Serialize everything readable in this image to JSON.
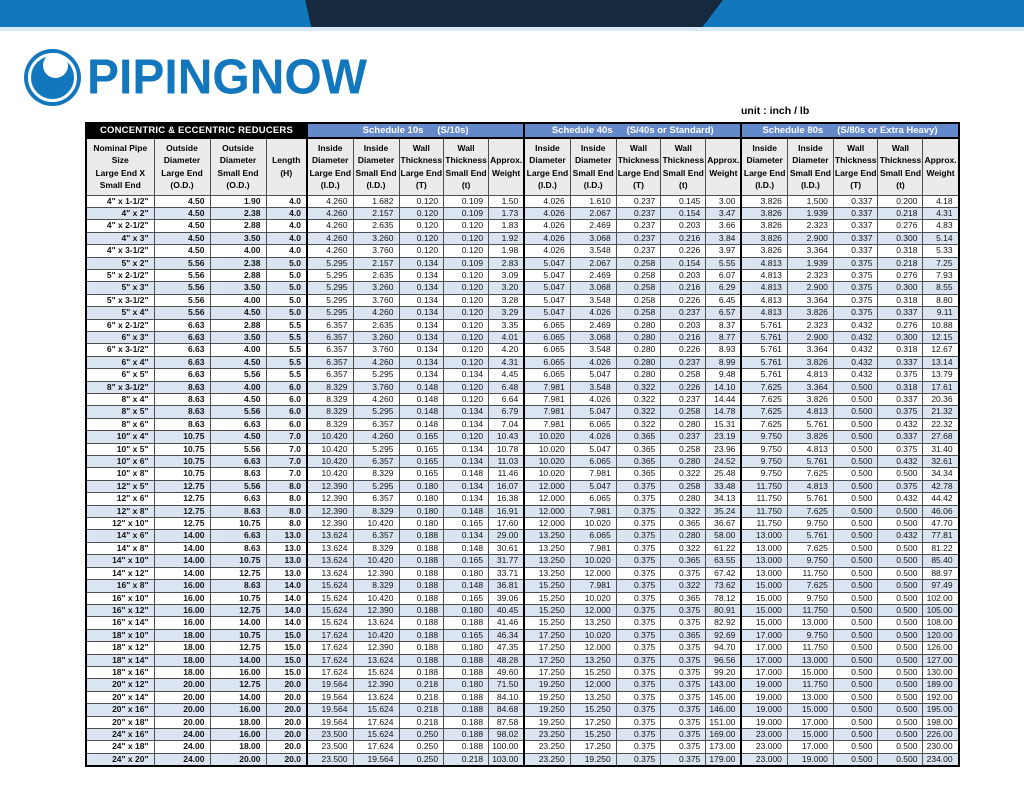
{
  "brand": {
    "name": "PIPINGNOW",
    "blue": "#1377be",
    "navy": "#16293e"
  },
  "unit_label": "unit : inch / lb",
  "table": {
    "title": "CONCENTRIC & ECCENTRIC REDUCERS",
    "schedules": [
      {
        "name": "Schedule 10s",
        "spec": "(S/10s)"
      },
      {
        "name": "Schedule 40s",
        "spec": "(S/40s or Standard)"
      },
      {
        "name": "Schedule 80s",
        "spec": "(S/80s or Extra Heavy)"
      }
    ],
    "base_columns": [
      "Nominal Pipe\nSize\nLarge End X\nSmall End",
      "Outside\nDiameter\nLarge End\n(O.D.)",
      "Outside\nDiameter\nSmall End\n(O.D.)",
      "Length\n(H)"
    ],
    "schedule_columns": [
      "Inside\nDiameter\nLarge End\n(I.D.)",
      "Inside\nDiameter\nSmall End\n(I.D.)",
      "Wall\nThickness\nLarge End\n(T)",
      "Wall\nThickness\nSmall End\n(t)",
      "Approx.\nWeight"
    ],
    "rows": [
      [
        "4\" x 1-1/2\"",
        "4.50",
        "1.90",
        "4.0",
        "4.260",
        "1.682",
        "0.120",
        "0.109",
        "1.50",
        "4.026",
        "1.610",
        "0.237",
        "0.145",
        "3.00",
        "3.826",
        "1.500",
        "0.337",
        "0.200",
        "4.18"
      ],
      [
        "4\" x 2\"",
        "4.50",
        "2.38",
        "4.0",
        "4.260",
        "2.157",
        "0.120",
        "0.109",
        "1.73",
        "4.026",
        "2.067",
        "0.237",
        "0.154",
        "3.47",
        "3.826",
        "1.939",
        "0.337",
        "0.218",
        "4.31"
      ],
      [
        "4\" x 2-1/2\"",
        "4.50",
        "2.88",
        "4.0",
        "4.260",
        "2.635",
        "0.120",
        "0.120",
        "1.83",
        "4.026",
        "2.469",
        "0.237",
        "0.203",
        "3.66",
        "3.826",
        "2.323",
        "0.337",
        "0.276",
        "4.83"
      ],
      [
        "4\" x 3\"",
        "4.50",
        "3.50",
        "4.0",
        "4.260",
        "3.260",
        "0.120",
        "0.120",
        "1.92",
        "4.026",
        "3.068",
        "0.237",
        "0.216",
        "3.84",
        "3.826",
        "2.900",
        "0.337",
        "0.300",
        "5.14"
      ],
      [
        "4\" x 3-1/2\"",
        "4.50",
        "4.00",
        "4.0",
        "4.260",
        "3.760",
        "0.120",
        "0.120",
        "1.98",
        "4.026",
        "3.548",
        "0.237",
        "0.226",
        "3.97",
        "3.826",
        "3.364",
        "0.337",
        "0.318",
        "5.33"
      ],
      [
        "5\" x 2\"",
        "5.56",
        "2.38",
        "5.0",
        "5.295",
        "2.157",
        "0.134",
        "0.109",
        "2.83",
        "5.047",
        "2.067",
        "0.258",
        "0.154",
        "5.55",
        "4.813",
        "1.939",
        "0.375",
        "0.218",
        "7.25"
      ],
      [
        "5\" x 2-1/2\"",
        "5.56",
        "2.88",
        "5.0",
        "5.295",
        "2.635",
        "0.134",
        "0.120",
        "3.09",
        "5.047",
        "2.469",
        "0.258",
        "0.203",
        "6.07",
        "4.813",
        "2.323",
        "0.375",
        "0.276",
        "7.93"
      ],
      [
        "5\" x 3\"",
        "5.56",
        "3.50",
        "5.0",
        "5.295",
        "3.260",
        "0.134",
        "0.120",
        "3.20",
        "5.047",
        "3.068",
        "0.258",
        "0.216",
        "6.29",
        "4.813",
        "2.900",
        "0.375",
        "0.300",
        "8.55"
      ],
      [
        "5\" x 3-1/2\"",
        "5.56",
        "4.00",
        "5.0",
        "5.295",
        "3.760",
        "0.134",
        "0.120",
        "3.28",
        "5.047",
        "3.548",
        "0.258",
        "0.226",
        "6.45",
        "4.813",
        "3.364",
        "0.375",
        "0.318",
        "8.80"
      ],
      [
        "5\" x 4\"",
        "5.56",
        "4.50",
        "5.0",
        "5.295",
        "4.260",
        "0.134",
        "0.120",
        "3.29",
        "5.047",
        "4.026",
        "0.258",
        "0.237",
        "6.57",
        "4.813",
        "3.826",
        "0.375",
        "0.337",
        "9.11"
      ],
      [
        "6\" x 2-1/2\"",
        "6.63",
        "2.88",
        "5.5",
        "6.357",
        "2.635",
        "0.134",
        "0.120",
        "3.35",
        "6.065",
        "2.469",
        "0.280",
        "0.203",
        "8.37",
        "5.761",
        "2.323",
        "0.432",
        "0.276",
        "10.88"
      ],
      [
        "6\" x 3\"",
        "6.63",
        "3.50",
        "5.5",
        "6.357",
        "3.260",
        "0.134",
        "0.120",
        "4.01",
        "6.065",
        "3.068",
        "0.280",
        "0.216",
        "8.77",
        "5.761",
        "2.900",
        "0.432",
        "0.300",
        "12.15"
      ],
      [
        "6\" x 3-1/2\"",
        "6.63",
        "4.00",
        "5.5",
        "6.357",
        "3.760",
        "0.134",
        "0.120",
        "4.20",
        "6.065",
        "3.548",
        "0.280",
        "0.226",
        "8.93",
        "5.761",
        "3.364",
        "0.432",
        "0.318",
        "12.67"
      ],
      [
        "6\" x 4\"",
        "6.63",
        "4.50",
        "5.5",
        "6.357",
        "4.260",
        "0.134",
        "0.120",
        "4.31",
        "6.065",
        "4.026",
        "0.280",
        "0.237",
        "8.99",
        "5.761",
        "3.826",
        "0.432",
        "0.337",
        "13.14"
      ],
      [
        "6\" x 5\"",
        "6.63",
        "5.56",
        "5.5",
        "6.357",
        "5.295",
        "0.134",
        "0.134",
        "4.45",
        "6.065",
        "5.047",
        "0.280",
        "0.258",
        "9.48",
        "5.761",
        "4.813",
        "0.432",
        "0.375",
        "13.79"
      ],
      [
        "8\" x 3-1/2\"",
        "8.63",
        "4.00",
        "6.0",
        "8.329",
        "3.760",
        "0.148",
        "0.120",
        "6.48",
        "7.981",
        "3.548",
        "0.322",
        "0.226",
        "14.10",
        "7.625",
        "3.364",
        "0.500",
        "0.318",
        "17.61"
      ],
      [
        "8\" x 4\"",
        "8.63",
        "4.50",
        "6.0",
        "8.329",
        "4.260",
        "0.148",
        "0.120",
        "6.64",
        "7.981",
        "4.026",
        "0.322",
        "0.237",
        "14.44",
        "7.625",
        "3.826",
        "0.500",
        "0.337",
        "20.36"
      ],
      [
        "8\" x 5\"",
        "8.63",
        "5.56",
        "6.0",
        "8.329",
        "5.295",
        "0.148",
        "0.134",
        "6.79",
        "7.981",
        "5.047",
        "0.322",
        "0.258",
        "14.78",
        "7.625",
        "4.813",
        "0.500",
        "0.375",
        "21.32"
      ],
      [
        "8\" x 6\"",
        "8.63",
        "6.63",
        "6.0",
        "8.329",
        "6.357",
        "0.148",
        "0.134",
        "7.04",
        "7.981",
        "6.065",
        "0.322",
        "0.280",
        "15.31",
        "7.625",
        "5.761",
        "0.500",
        "0.432",
        "22.32"
      ],
      [
        "10\" x 4\"",
        "10.75",
        "4.50",
        "7.0",
        "10.420",
        "4.260",
        "0.165",
        "0.120",
        "10.43",
        "10.020",
        "4.026",
        "0.365",
        "0.237",
        "23.19",
        "9.750",
        "3.826",
        "0.500",
        "0.337",
        "27.68"
      ],
      [
        "10\" x 5\"",
        "10.75",
        "5.56",
        "7.0",
        "10.420",
        "5.295",
        "0.165",
        "0.134",
        "10.78",
        "10.020",
        "5.047",
        "0.365",
        "0.258",
        "23.96",
        "9.750",
        "4.813",
        "0.500",
        "0.375",
        "31.40"
      ],
      [
        "10\" x 6\"",
        "10.75",
        "6.63",
        "7.0",
        "10.420",
        "6.357",
        "0.165",
        "0.134",
        "11.03",
        "10.020",
        "6.065",
        "0.365",
        "0.280",
        "24.52",
        "9.750",
        "5.761",
        "0.500",
        "0.432",
        "32.61"
      ],
      [
        "10\" x 8\"",
        "10.75",
        "8.63",
        "7.0",
        "10.420",
        "8.329",
        "0.165",
        "0.148",
        "11.46",
        "10.020",
        "7.981",
        "0.365",
        "0.322",
        "25.48",
        "9.750",
        "7.625",
        "0.500",
        "0.500",
        "34.34"
      ],
      [
        "12\" x 5\"",
        "12.75",
        "5.56",
        "8.0",
        "12.390",
        "5.295",
        "0.180",
        "0.134",
        "16.07",
        "12.000",
        "5.047",
        "0.375",
        "0.258",
        "33.48",
        "11.750",
        "4.813",
        "0.500",
        "0.375",
        "42.78"
      ],
      [
        "12\" x 6\"",
        "12.75",
        "6.63",
        "8.0",
        "12.390",
        "6.357",
        "0.180",
        "0.134",
        "16.38",
        "12.000",
        "6.065",
        "0.375",
        "0.280",
        "34.13",
        "11.750",
        "5.761",
        "0.500",
        "0.432",
        "44.42"
      ],
      [
        "12\" x 8\"",
        "12.75",
        "8.63",
        "8.0",
        "12.390",
        "8.329",
        "0.180",
        "0.148",
        "16.91",
        "12.000",
        "7.981",
        "0.375",
        "0.322",
        "35.24",
        "11.750",
        "7.625",
        "0.500",
        "0.500",
        "46.06"
      ],
      [
        "12\" x 10\"",
        "12.75",
        "10.75",
        "8.0",
        "12.390",
        "10.420",
        "0.180",
        "0.165",
        "17.60",
        "12.000",
        "10.020",
        "0.375",
        "0.365",
        "36.67",
        "11.750",
        "9.750",
        "0.500",
        "0.500",
        "47.70"
      ],
      [
        "14\" x 6\"",
        "14.00",
        "6.63",
        "13.0",
        "13.624",
        "6.357",
        "0.188",
        "0.134",
        "29.00",
        "13.250",
        "6.065",
        "0.375",
        "0.280",
        "58.00",
        "13.000",
        "5.761",
        "0.500",
        "0.432",
        "77.81"
      ],
      [
        "14\" x 8\"",
        "14.00",
        "8.63",
        "13.0",
        "13.624",
        "8.329",
        "0.188",
        "0.148",
        "30.61",
        "13.250",
        "7.981",
        "0.375",
        "0.322",
        "61.22",
        "13.000",
        "7.625",
        "0.500",
        "0.500",
        "81.22"
      ],
      [
        "14\" x 10\"",
        "14.00",
        "10.75",
        "13.0",
        "13.624",
        "10.420",
        "0.188",
        "0.165",
        "31.77",
        "13.250",
        "10.020",
        "0.375",
        "0.365",
        "63.55",
        "13.000",
        "9.750",
        "0.500",
        "0.500",
        "85.40"
      ],
      [
        "14\" x 12\"",
        "14.00",
        "12.75",
        "13.0",
        "13.624",
        "12.390",
        "0.188",
        "0.180",
        "33.71",
        "13.250",
        "12.000",
        "0.375",
        "0.375",
        "67.42",
        "13.000",
        "11.750",
        "0.500",
        "0.500",
        "88.97"
      ],
      [
        "16\" x 8\"",
        "16.00",
        "8.63",
        "14.0",
        "15.624",
        "8.329",
        "0.188",
        "0.148",
        "36.81",
        "15.250",
        "7.981",
        "0.375",
        "0.322",
        "73.62",
        "15.000",
        "7.625",
        "0.500",
        "0.500",
        "97.49"
      ],
      [
        "16\" x 10\"",
        "16.00",
        "10.75",
        "14.0",
        "15.624",
        "10.420",
        "0.188",
        "0.165",
        "39.06",
        "15.250",
        "10.020",
        "0.375",
        "0.365",
        "78.12",
        "15.000",
        "9.750",
        "0.500",
        "0.500",
        "102.00"
      ],
      [
        "16\" x 12\"",
        "16.00",
        "12.75",
        "14.0",
        "15.624",
        "12.390",
        "0.188",
        "0.180",
        "40.45",
        "15.250",
        "12.000",
        "0.375",
        "0.375",
        "80.91",
        "15.000",
        "11.750",
        "0.500",
        "0.500",
        "105.00"
      ],
      [
        "16\" x 14\"",
        "16.00",
        "14.00",
        "14.0",
        "15.624",
        "13.624",
        "0.188",
        "0.188",
        "41.46",
        "15.250",
        "13.250",
        "0.375",
        "0.375",
        "82.92",
        "15.000",
        "13.000",
        "0.500",
        "0.500",
        "108.00"
      ],
      [
        "18\" x 10\"",
        "18.00",
        "10.75",
        "15.0",
        "17.624",
        "10.420",
        "0.188",
        "0.165",
        "46.34",
        "17.250",
        "10.020",
        "0.375",
        "0.365",
        "92.69",
        "17.000",
        "9.750",
        "0.500",
        "0.500",
        "120.00"
      ],
      [
        "18\" x 12\"",
        "18.00",
        "12.75",
        "15.0",
        "17.624",
        "12.390",
        "0.188",
        "0.180",
        "47.35",
        "17.250",
        "12.000",
        "0.375",
        "0.375",
        "94.70",
        "17.000",
        "11.750",
        "0.500",
        "0.500",
        "126.00"
      ],
      [
        "18\" x 14\"",
        "18.00",
        "14.00",
        "15.0",
        "17.624",
        "13.624",
        "0.188",
        "0.188",
        "48.28",
        "17.250",
        "13.250",
        "0.375",
        "0.375",
        "96.56",
        "17.000",
        "13.000",
        "0.500",
        "0.500",
        "127.00"
      ],
      [
        "18\" x 16\"",
        "18.00",
        "16.00",
        "15.0",
        "17.624",
        "15.624",
        "0.188",
        "0.188",
        "49.60",
        "17.250",
        "15.250",
        "0.375",
        "0.375",
        "99.20",
        "17.000",
        "15.000",
        "0.500",
        "0.500",
        "130.00"
      ],
      [
        "20\" x 12\"",
        "20.00",
        "12.75",
        "20.0",
        "19.564",
        "12.390",
        "0.218",
        "0.180",
        "71.50",
        "19.250",
        "12.000",
        "0.375",
        "0.375",
        "143.00",
        "19.000",
        "11.750",
        "0.500",
        "0.500",
        "189.00"
      ],
      [
        "20\" x 14\"",
        "20.00",
        "14.00",
        "20.0",
        "19.564",
        "13.624",
        "0.218",
        "0.188",
        "84.10",
        "19.250",
        "13.250",
        "0.375",
        "0.375",
        "145.00",
        "19.000",
        "13.000",
        "0.500",
        "0.500",
        "192.00"
      ],
      [
        "20\" x 16\"",
        "20.00",
        "16.00",
        "20.0",
        "19.564",
        "15.624",
        "0.218",
        "0.188",
        "84.68",
        "19.250",
        "15.250",
        "0.375",
        "0.375",
        "146.00",
        "19.000",
        "15.000",
        "0.500",
        "0.500",
        "195.00"
      ],
      [
        "20\" x 18\"",
        "20.00",
        "18.00",
        "20.0",
        "19.564",
        "17.624",
        "0.218",
        "0.188",
        "87.58",
        "19.250",
        "17.250",
        "0.375",
        "0.375",
        "151.00",
        "19.000",
        "17.000",
        "0.500",
        "0.500",
        "198.00"
      ],
      [
        "24\" x 16\"",
        "24.00",
        "16.00",
        "20.0",
        "23.500",
        "15.624",
        "0.250",
        "0.188",
        "98.02",
        "23.250",
        "15.250",
        "0.375",
        "0.375",
        "169.00",
        "23.000",
        "15.000",
        "0.500",
        "0.500",
        "226.00"
      ],
      [
        "24\" x 18\"",
        "24.00",
        "18.00",
        "20.0",
        "23.500",
        "17.624",
        "0.250",
        "0.188",
        "100.00",
        "23.250",
        "17.250",
        "0.375",
        "0.375",
        "173.00",
        "23.000",
        "17.000",
        "0.500",
        "0.500",
        "230.00"
      ],
      [
        "24\" x 20\"",
        "24.00",
        "20.00",
        "20.0",
        "23.500",
        "19.564",
        "0.250",
        "0.218",
        "103.00",
        "23.250",
        "19.250",
        "0.375",
        "0.375",
        "179.00",
        "23.000",
        "19.000",
        "0.500",
        "0.500",
        "234.00"
      ]
    ]
  }
}
